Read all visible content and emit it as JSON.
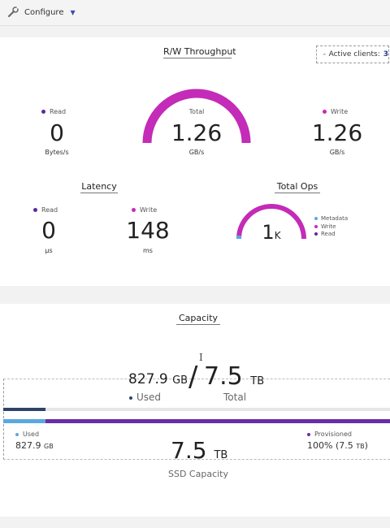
{
  "toolbar": {
    "configure_label": "Configure"
  },
  "throughput": {
    "title": "R/W Throughput",
    "active_clients_label": "Active clients:",
    "active_clients_value": "3",
    "read_label": "Read",
    "read_value": "0",
    "read_unit": "Bytes/s",
    "total_label": "Total",
    "total_value": "1.26",
    "total_unit": "GB/s",
    "write_label": "Write",
    "write_value": "1.26",
    "write_unit": "GB/s",
    "gauge_fraction": 1.0
  },
  "latency": {
    "title": "Latency",
    "read_label": "Read",
    "read_value": "0",
    "read_unit": "µs",
    "write_label": "Write",
    "write_value": "148",
    "write_unit": "ms"
  },
  "total_ops": {
    "title": "Total Ops",
    "value": "1",
    "value_suffix": "K",
    "legend": [
      "Metadata",
      "Write",
      "Read"
    ],
    "gauge_fraction": 1.0
  },
  "capacity": {
    "title": "Capacity",
    "used_value": "827.9",
    "used_unit": "GB",
    "used_label": "Used",
    "slash": "/",
    "total_value": "7.5",
    "total_unit": "TB",
    "total_label": "Total",
    "used_small_label": "Used",
    "used_small_value": "827.9",
    "used_small_unit": "GB",
    "ssd_value": "7.5",
    "ssd_unit": "TB",
    "ssd_label": "SSD Capacity",
    "provisioned_label": "Provisioned",
    "provisioned_value": "100% (7.5",
    "provisioned_unit": "TB",
    "provisioned_close": ")",
    "used_fraction": 0.11,
    "cursor_glyph": "I"
  },
  "colors": {
    "magenta": "#c42bb8",
    "purple": "#6a2ea8",
    "blue": "#5ba8e0",
    "navy": "#2e4369",
    "read_dot": "#5a2aa0"
  }
}
